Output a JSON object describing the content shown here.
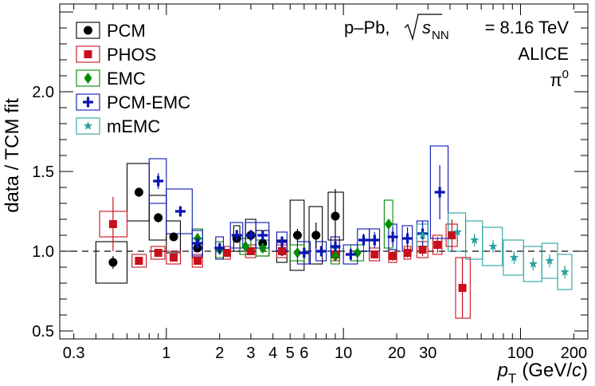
{
  "chart_data": {
    "type": "scatter",
    "title": "",
    "xlabel_var": "p",
    "xlabel_sub": "T",
    "xlabel_units_open": "(GeV/",
    "xlabel_units_c": "c",
    "xlabel_units_close": ")",
    "ylabel": "data / TCM fit",
    "xscale": "log",
    "xlim": [
      0.25,
      240
    ],
    "ylim": [
      0.45,
      2.55
    ],
    "reference_line": 1.0,
    "x_ticks": [
      {
        "v": 0.3,
        "label": "0.3"
      },
      {
        "v": 1,
        "label": "1"
      },
      {
        "v": 2,
        "label": "2"
      },
      {
        "v": 3,
        "label": "3"
      },
      {
        "v": 4,
        "label": "4"
      },
      {
        "v": 5,
        "label": "5"
      },
      {
        "v": 6,
        "label": "6"
      },
      {
        "v": 10,
        "label": "10"
      },
      {
        "v": 20,
        "label": "20"
      },
      {
        "v": 30,
        "label": "30"
      },
      {
        "v": 100,
        "label": "100"
      },
      {
        "v": 200,
        "label": "200"
      }
    ],
    "y_ticks": [
      {
        "v": 0.5,
        "label": "0.5"
      },
      {
        "v": 1.0,
        "label": "1.0"
      },
      {
        "v": 1.5,
        "label": "1.5"
      },
      {
        "v": 2.0,
        "label": "2.0"
      }
    ],
    "annotation": {
      "system": "p–Pb,",
      "sqrt_s": "s",
      "sqrt_sub": "NN",
      "energy": "= 8.16 TeV",
      "experiment": "ALICE",
      "particle": "π",
      "particle_sup": "0"
    },
    "series": [
      {
        "name": "PCM",
        "marker": "circle",
        "color": "#000000",
        "points": [
          {
            "x": 0.5,
            "y": 0.93,
            "xl": 0.4,
            "xh": 0.6,
            "stat": 0.04,
            "sys": 0.13
          },
          {
            "x": 0.7,
            "y": 1.37,
            "xl": 0.6,
            "xh": 0.8,
            "stat": 0.03,
            "sys": 0.18
          },
          {
            "x": 0.9,
            "y": 1.21,
            "xl": 0.8,
            "xh": 1.0,
            "stat": 0.03,
            "sys": 0.14
          },
          {
            "x": 1.1,
            "y": 1.09,
            "xl": 1.0,
            "xh": 1.2,
            "stat": 0.02,
            "sys": 0.1
          },
          {
            "x": 1.5,
            "y": 1.02,
            "xl": 1.4,
            "xh": 1.6,
            "stat": 0.02,
            "sys": 0.06
          },
          {
            "x": 2.5,
            "y": 1.08,
            "xl": 2.4,
            "xh": 2.6,
            "stat": 0.02,
            "sys": 0.08
          },
          {
            "x": 3.0,
            "y": 1.1,
            "xl": 2.8,
            "xh": 3.2,
            "stat": 0.03,
            "sys": 0.1
          },
          {
            "x": 3.5,
            "y": 1.05,
            "xl": 3.2,
            "xh": 3.8,
            "stat": 0.03,
            "sys": 0.08
          },
          {
            "x": 4.5,
            "y": 1.0,
            "xl": 4.2,
            "xh": 4.8,
            "stat": 0.03,
            "sys": 0.07
          },
          {
            "x": 5.5,
            "y": 1.1,
            "xl": 5.0,
            "xh": 6.0,
            "stat": 0.04,
            "sys": 0.22
          },
          {
            "x": 7.0,
            "y": 1.1,
            "xl": 6.4,
            "xh": 7.6,
            "stat": 0.08,
            "sys": 0.18
          },
          {
            "x": 9.0,
            "y": 1.22,
            "xl": 8.2,
            "xh": 10.0,
            "stat": 0.17,
            "sys": 0.15
          }
        ]
      },
      {
        "name": "PHOS",
        "marker": "square",
        "color": "#c8101c",
        "points": [
          {
            "x": 0.5,
            "y": 1.17,
            "xl": 0.42,
            "xh": 0.6,
            "stat": 0.17,
            "sys": 0.08
          },
          {
            "x": 0.7,
            "y": 0.94,
            "xl": 0.64,
            "xh": 0.77,
            "stat": 0.02,
            "sys": 0.04
          },
          {
            "x": 0.9,
            "y": 0.99,
            "xl": 0.82,
            "xh": 0.98,
            "stat": 0.01,
            "sys": 0.04
          },
          {
            "x": 1.1,
            "y": 0.96,
            "xl": 1.0,
            "xh": 1.2,
            "stat": 0.01,
            "sys": 0.04
          },
          {
            "x": 1.5,
            "y": 0.94,
            "xl": 1.4,
            "xh": 1.6,
            "stat": 0.01,
            "sys": 0.04
          },
          {
            "x": 2.2,
            "y": 0.99,
            "xl": 2.1,
            "xh": 2.3,
            "stat": 0.01,
            "sys": 0.04
          },
          {
            "x": 3.0,
            "y": 1.0,
            "xl": 2.8,
            "xh": 3.2,
            "stat": 0.01,
            "sys": 0.04
          },
          {
            "x": 4.5,
            "y": 1.0,
            "xl": 4.2,
            "xh": 4.8,
            "stat": 0.01,
            "sys": 0.04
          },
          {
            "x": 9.0,
            "y": 0.98,
            "xl": 8.5,
            "xh": 9.5,
            "stat": 0.02,
            "sys": 0.04
          },
          {
            "x": 15.0,
            "y": 0.98,
            "xl": 14.0,
            "xh": 16.0,
            "stat": 0.02,
            "sys": 0.04
          },
          {
            "x": 19.0,
            "y": 0.97,
            "xl": 18.0,
            "xh": 20.0,
            "stat": 0.03,
            "sys": 0.04
          },
          {
            "x": 23.0,
            "y": 0.99,
            "xl": 22.0,
            "xh": 24.0,
            "stat": 0.03,
            "sys": 0.04
          },
          {
            "x": 28.0,
            "y": 1.01,
            "xl": 26.0,
            "xh": 30.0,
            "stat": 0.04,
            "sys": 0.05
          },
          {
            "x": 34.0,
            "y": 1.04,
            "xl": 32.0,
            "xh": 36.0,
            "stat": 0.05,
            "sys": 0.06
          },
          {
            "x": 41.0,
            "y": 1.1,
            "xl": 38.0,
            "xh": 44.0,
            "stat": 0.1,
            "sys": 0.07
          },
          {
            "x": 47.0,
            "y": 0.77,
            "xl": 43.0,
            "xh": 52.0,
            "stat": 0.19,
            "sys": 0.19
          }
        ]
      },
      {
        "name": "EMC",
        "marker": "diamond",
        "color": "#008b00",
        "points": [
          {
            "x": 1.5,
            "y": 1.08,
            "xl": 1.4,
            "xh": 1.6,
            "stat": 0.01,
            "sys": 0.06
          },
          {
            "x": 2.0,
            "y": 1.01,
            "xl": 1.9,
            "xh": 2.1,
            "stat": 0.01,
            "sys": 0.05
          },
          {
            "x": 2.8,
            "y": 1.03,
            "xl": 2.6,
            "xh": 3.0,
            "stat": 0.01,
            "sys": 0.05
          },
          {
            "x": 3.5,
            "y": 1.02,
            "xl": 3.2,
            "xh": 3.8,
            "stat": 0.01,
            "sys": 0.05
          },
          {
            "x": 5.5,
            "y": 0.99,
            "xl": 5.0,
            "xh": 6.0,
            "stat": 0.01,
            "sys": 0.05
          },
          {
            "x": 9.0,
            "y": 0.97,
            "xl": 8.5,
            "xh": 9.5,
            "stat": 0.02,
            "sys": 0.05
          },
          {
            "x": 12.0,
            "y": 0.99,
            "xl": 11.0,
            "xh": 13.0,
            "stat": 0.02,
            "sys": 0.05
          },
          {
            "x": 18.0,
            "y": 1.17,
            "xl": 17.0,
            "xh": 19.0,
            "stat": 0.03,
            "sys": 0.15
          }
        ]
      },
      {
        "name": "PCM-EMC",
        "marker": "cross",
        "color": "#0a14b4",
        "points": [
          {
            "x": 0.9,
            "y": 1.44,
            "xl": 0.8,
            "xh": 1.0,
            "stat": 0.05,
            "sys": 0.14
          },
          {
            "x": 1.2,
            "y": 1.25,
            "xl": 1.0,
            "xh": 1.4,
            "stat": 0.03,
            "sys": 0.14
          },
          {
            "x": 1.5,
            "y": 1.05,
            "xl": 1.4,
            "xh": 1.6,
            "stat": 0.02,
            "sys": 0.08
          },
          {
            "x": 2.0,
            "y": 1.02,
            "xl": 1.9,
            "xh": 2.1,
            "stat": 0.02,
            "sys": 0.07
          },
          {
            "x": 2.5,
            "y": 1.1,
            "xl": 2.3,
            "xh": 2.7,
            "stat": 0.02,
            "sys": 0.08
          },
          {
            "x": 3.0,
            "y": 1.1,
            "xl": 2.8,
            "xh": 3.2,
            "stat": 0.02,
            "sys": 0.08
          },
          {
            "x": 3.5,
            "y": 1.1,
            "xl": 3.2,
            "xh": 3.8,
            "stat": 0.02,
            "sys": 0.08
          },
          {
            "x": 4.5,
            "y": 1.06,
            "xl": 4.2,
            "xh": 4.8,
            "stat": 0.02,
            "sys": 0.06
          },
          {
            "x": 6.0,
            "y": 0.99,
            "xl": 5.5,
            "xh": 6.5,
            "stat": 0.03,
            "sys": 0.07
          },
          {
            "x": 7.5,
            "y": 1.0,
            "xl": 7.0,
            "xh": 8.0,
            "stat": 0.03,
            "sys": 0.06
          },
          {
            "x": 9.0,
            "y": 1.03,
            "xl": 8.5,
            "xh": 9.5,
            "stat": 0.04,
            "sys": 0.06
          },
          {
            "x": 11.0,
            "y": 0.98,
            "xl": 10.0,
            "xh": 12.0,
            "stat": 0.04,
            "sys": 0.06
          },
          {
            "x": 13.0,
            "y": 1.07,
            "xl": 12.0,
            "xh": 14.0,
            "stat": 0.04,
            "sys": 0.07
          },
          {
            "x": 15.0,
            "y": 1.07,
            "xl": 14.0,
            "xh": 16.0,
            "stat": 0.05,
            "sys": 0.07
          },
          {
            "x": 19.0,
            "y": 1.09,
            "xl": 18.0,
            "xh": 20.0,
            "stat": 0.06,
            "sys": 0.08
          },
          {
            "x": 23.0,
            "y": 1.08,
            "xl": 21.5,
            "xh": 24.5,
            "stat": 0.07,
            "sys": 0.08
          },
          {
            "x": 28.0,
            "y": 1.11,
            "xl": 26.0,
            "xh": 30.0,
            "stat": 0.08,
            "sys": 0.08
          },
          {
            "x": 35.0,
            "y": 1.37,
            "xl": 31.0,
            "xh": 39.0,
            "stat": 0.17,
            "sys": 0.29
          }
        ]
      },
      {
        "name": "mEMC",
        "marker": "star",
        "color": "#29a1a1",
        "points": [
          {
            "x": 28.0,
            "y": 1.1,
            "xl": 26.0,
            "xh": 30.0,
            "stat": 0.04,
            "sys": 0.07
          },
          {
            "x": 44.0,
            "y": 1.12,
            "xl": 39.0,
            "xh": 49.0,
            "stat": 0.04,
            "sys": 0.12
          },
          {
            "x": 55.0,
            "y": 1.07,
            "xl": 49.0,
            "xh": 61.0,
            "stat": 0.04,
            "sys": 0.12
          },
          {
            "x": 70.0,
            "y": 1.03,
            "xl": 61.0,
            "xh": 79.0,
            "stat": 0.04,
            "sys": 0.12
          },
          {
            "x": 92.0,
            "y": 0.96,
            "xl": 80.0,
            "xh": 104.0,
            "stat": 0.04,
            "sys": 0.11
          },
          {
            "x": 118.0,
            "y": 0.92,
            "xl": 104.0,
            "xh": 132.0,
            "stat": 0.04,
            "sys": 0.11
          },
          {
            "x": 146.0,
            "y": 0.94,
            "xl": 132.0,
            "xh": 162.0,
            "stat": 0.04,
            "sys": 0.11
          },
          {
            "x": 178.0,
            "y": 0.87,
            "xl": 162.0,
            "xh": 195.0,
            "stat": 0.04,
            "sys": 0.11
          }
        ]
      }
    ]
  }
}
